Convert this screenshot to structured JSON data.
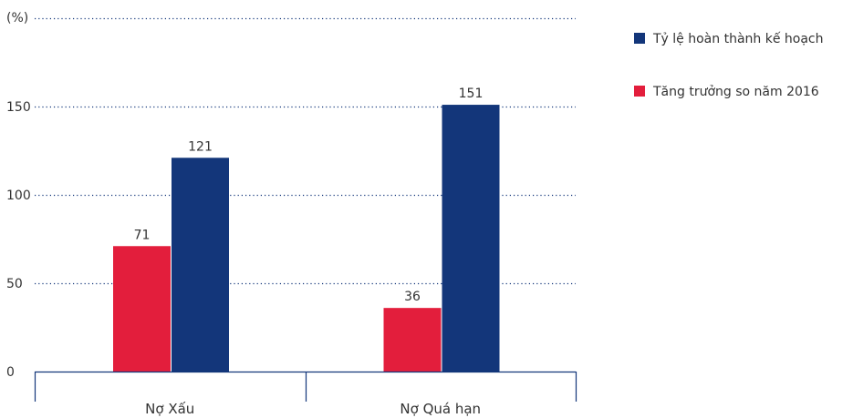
{
  "chart_data": {
    "type": "bar",
    "ylabel": "(%)",
    "categories": [
      "Nợ Xấu",
      "Nợ Quá hạn"
    ],
    "series": [
      {
        "name": "Tăng trưởng so năm 2016",
        "color": "#e31e3c",
        "values": [
          71,
          36
        ]
      },
      {
        "name": "Tỷ lệ hoàn thành kế hoạch",
        "color": "#13367a",
        "values": [
          121,
          151
        ]
      }
    ],
    "data_labels": [
      [
        "71",
        "36"
      ],
      [
        "121",
        "151"
      ]
    ],
    "yticks": [
      0,
      50,
      100,
      150
    ],
    "ylim": [
      0,
      200
    ],
    "grid": true,
    "legend": {
      "position": "top-right",
      "order": [
        "Tỷ lệ hoàn thành kế hoạch",
        "Tăng trưởng so năm 2016"
      ]
    }
  }
}
